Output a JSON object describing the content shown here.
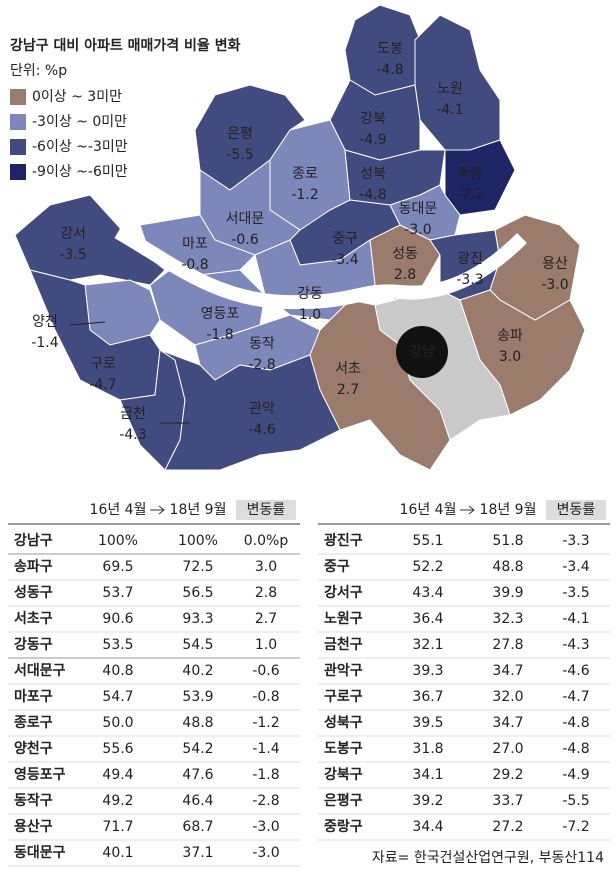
{
  "header": {
    "title": "강남구 대비 아파트 매매가격 비율 변화",
    "unit": "단위: %p"
  },
  "legend": {
    "items": [
      {
        "label": "0이상  ~ 3미만",
        "color": "#9a7b6c"
      },
      {
        "label": "-3이상 ~ 0미만",
        "color": "#7d87b9"
      },
      {
        "label": "-6이상 ~-3미만",
        "color": "#414b7f"
      },
      {
        "label": "-9이상 ~-6미만",
        "color": "#1d2564"
      }
    ]
  },
  "map": {
    "center": {
      "label": "강남",
      "color": "#c9c9c9"
    },
    "districts": [
      {
        "name": "도봉",
        "value": "-4.8",
        "color": "#414b7f"
      },
      {
        "name": "노원",
        "value": "-4.1",
        "color": "#414b7f"
      },
      {
        "name": "강북",
        "value": "-4.9",
        "color": "#414b7f"
      },
      {
        "name": "은평",
        "value": "-5.5",
        "color": "#414b7f"
      },
      {
        "name": "종로",
        "value": "-1.2",
        "color": "#7d87b9"
      },
      {
        "name": "성북",
        "value": "-4.8",
        "color": "#414b7f"
      },
      {
        "name": "중랑",
        "value": "-7.2",
        "color": "#1d2564"
      },
      {
        "name": "동대문",
        "value": "-3.0",
        "color": "#7d87b9"
      },
      {
        "name": "서대문",
        "value": "-0.6",
        "color": "#7d87b9"
      },
      {
        "name": "강서",
        "value": "-3.5",
        "color": "#414b7f"
      },
      {
        "name": "마포",
        "value": "-0.8",
        "color": "#7d87b9"
      },
      {
        "name": "중구",
        "value": "-3.4",
        "color": "#414b7f"
      },
      {
        "name": "성동",
        "value": "2.8",
        "color": "#9a7b6c"
      },
      {
        "name": "광진",
        "value": "-3.3",
        "color": "#414b7f"
      },
      {
        "name": "용산",
        "value": "-3.0",
        "color": "#7d87b9"
      },
      {
        "name": "강동",
        "value": "1.0",
        "color": "#9a7b6c"
      },
      {
        "name": "양천",
        "value": "-1.4",
        "color": "#7d87b9"
      },
      {
        "name": "영등포",
        "value": "-1.8",
        "color": "#7d87b9"
      },
      {
        "name": "구로",
        "value": "-4.7",
        "color": "#414b7f"
      },
      {
        "name": "동작",
        "value": "-2.8",
        "color": "#7d87b9"
      },
      {
        "name": "서초",
        "value": "2.7",
        "color": "#9a7b6c"
      },
      {
        "name": "송파",
        "value": "3.0",
        "color": "#9a7b6c"
      },
      {
        "name": "금천",
        "value": "-4.3",
        "color": "#414b7f"
      },
      {
        "name": "관악",
        "value": "-4.6",
        "color": "#414b7f"
      }
    ]
  },
  "tables": [
    {
      "header": [
        "16년 4월",
        "18년 9월",
        "변동률"
      ],
      "groups": [
        {
          "color": "#8a8a8a",
          "rows": [
            [
              "강남구",
              "100%",
              "100%",
              "0.0%p"
            ]
          ]
        },
        {
          "color": "#8b6a5b",
          "rows": [
            [
              "송파구",
              "69.5",
              "72.5",
              "3.0"
            ],
            [
              "성동구",
              "53.7",
              "56.5",
              "2.8"
            ],
            [
              "서초구",
              "90.6",
              "93.3",
              "2.7"
            ],
            [
              "강동구",
              "53.5",
              "54.5",
              "1.0"
            ]
          ]
        },
        {
          "color": "#7d87b9",
          "rows": [
            [
              "서대문구",
              "40.8",
              "40.2",
              "-0.6"
            ],
            [
              "마포구",
              "54.7",
              "53.9",
              "-0.8"
            ],
            [
              "종로구",
              "50.0",
              "48.8",
              "-1.2"
            ],
            [
              "양천구",
              "55.6",
              "54.2",
              "-1.4"
            ],
            [
              "영등포구",
              "49.4",
              "47.6",
              "-1.8"
            ],
            [
              "동작구",
              "49.2",
              "46.4",
              "-2.8"
            ],
            [
              "용산구",
              "71.7",
              "68.7",
              "-3.0"
            ],
            [
              "동대문구",
              "40.1",
              "37.1",
              "-3.0"
            ]
          ]
        }
      ]
    },
    {
      "header": [
        "16년 4월",
        "18년 9월",
        "변동률"
      ],
      "groups": [
        {
          "color": "#1d2564",
          "rows": [
            [
              "광진구",
              "55.1",
              "51.8",
              "-3.3"
            ],
            [
              "중구",
              "52.2",
              "48.8",
              "-3.4"
            ],
            [
              "강서구",
              "43.4",
              "39.9",
              "-3.5"
            ],
            [
              "노원구",
              "36.4",
              "32.3",
              "-4.1"
            ],
            [
              "금천구",
              "32.1",
              "27.8",
              "-4.3"
            ],
            [
              "관악구",
              "39.3",
              "34.7",
              "-4.6"
            ],
            [
              "구로구",
              "36.7",
              "32.0",
              "-4.7"
            ],
            [
              "성북구",
              "39.5",
              "34.7",
              "-4.8"
            ],
            [
              "도봉구",
              "31.8",
              "27.0",
              "-4.8"
            ],
            [
              "강북구",
              "34.1",
              "29.2",
              "-4.9"
            ],
            [
              "은평구",
              "39.2",
              "33.7",
              "-5.5"
            ],
            [
              "중랑구",
              "34.4",
              "27.2",
              "-7.2"
            ]
          ]
        }
      ]
    }
  ],
  "source": "자료= 한국건설산업연구원, 부동산114"
}
